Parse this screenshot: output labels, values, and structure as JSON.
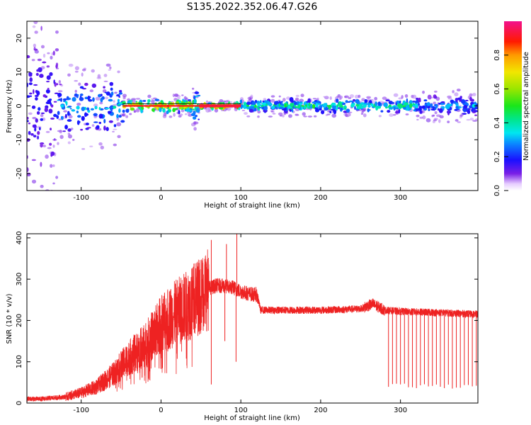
{
  "figure_title": "S135.2022.352.06.47.G26",
  "chart_data": [
    {
      "type": "heatmap",
      "xlabel": "Height of straight line (km)",
      "ylabel": "Frequency (Hz)",
      "xlim": [
        -168,
        397
      ],
      "ylim": [
        -25,
        25
      ],
      "xticks": [
        -100,
        0,
        100,
        200,
        300
      ],
      "yticks": [
        -20,
        -10,
        0,
        10,
        20
      ],
      "colorbar": {
        "label": "Normalized spectral amplitude",
        "range": [
          0,
          1
        ],
        "ticks": [
          0.0,
          0.2,
          0.4,
          0.6,
          0.8
        ],
        "colormap": "gist_ncar-like (white, purple, blue, cyan, green, yellow, red, magenta)"
      },
      "bands": [
        {
          "x": [
            -168,
            -130
          ],
          "freq_spread": 24,
          "level": 0.18,
          "pattern": "sparse scattered blobs"
        },
        {
          "x": [
            -130,
            -48
          ],
          "freq_spread": 8,
          "level": 0.35,
          "pattern": "blue-cyan blobs"
        },
        {
          "x": [
            -48,
            40
          ],
          "freq_spread": 2,
          "level": 0.75,
          "pattern": "red/yellow beads near 0 Hz"
        },
        {
          "x": [
            40,
            48
          ],
          "freq_spread": 5,
          "level": 0.5,
          "pattern": "spike"
        },
        {
          "x": [
            48,
            100
          ],
          "freq_spread": 1,
          "level": 1.0,
          "pattern": "solid red line at 0 Hz"
        },
        {
          "x": [
            100,
            320
          ],
          "freq_spread": 2,
          "level": 0.45,
          "pattern": "green-cyan band"
        },
        {
          "x": [
            320,
            397
          ],
          "freq_spread": 3,
          "level": 0.3,
          "pattern": "blue-cyan band"
        }
      ]
    },
    {
      "type": "line",
      "xlabel": "Height of straight line (km)",
      "ylabel": "SNR (10 * v/v)",
      "xlim": [
        -168,
        397
      ],
      "ylim": [
        0,
        410
      ],
      "xticks": [
        -100,
        0,
        100,
        200,
        300
      ],
      "yticks": [
        0,
        100,
        200,
        300,
        400
      ],
      "color": "#ee2222",
      "series": [
        {
          "x": [
            -168,
            -150,
            -120,
            -100,
            -80,
            -60,
            -40,
            -20,
            0,
            20,
            40,
            50,
            60,
            70,
            80,
            90,
            100,
            110,
            120,
            125,
            150,
            200,
            250,
            265,
            280,
            300,
            330,
            360,
            397
          ],
          "values": [
            10,
            10,
            15,
            25,
            40,
            70,
            110,
            140,
            190,
            220,
            245,
            265,
            278,
            285,
            283,
            280,
            270,
            265,
            262,
            225,
            225,
            225,
            228,
            240,
            225,
            222,
            220,
            218,
            215
          ]
        }
      ],
      "spikes_up": [
        {
          "x": 63,
          "y": 395
        },
        {
          "x": 82,
          "y": 385
        },
        {
          "x": 95,
          "y": 410
        }
      ],
      "spikes_down": [
        {
          "x": 63,
          "y": 45
        },
        {
          "x": 80,
          "y": 150
        },
        {
          "x": 94,
          "y": 100
        }
      ],
      "dropouts": {
        "x_start": 285,
        "x_end": 395,
        "spacing": 5,
        "min_y": 35
      }
    }
  ]
}
